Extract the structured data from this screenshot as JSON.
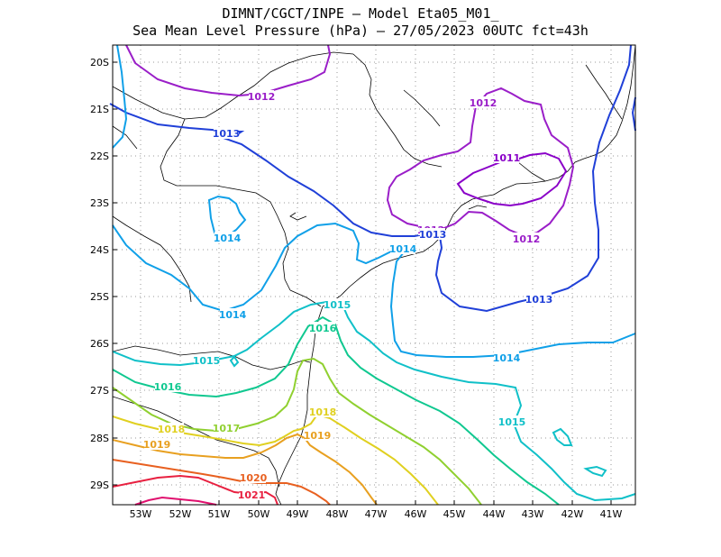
{
  "header": {
    "line1": "DIMNT/CGCT/INPE –  Model Eta05_M01_",
    "line2": "Sea Mean Level Pressure (hPa) – 27/05/2023 00UTC fct=43h"
  },
  "axes": {
    "lon_labels": [
      "53W",
      "52W",
      "51W",
      "50W",
      "49W",
      "48W",
      "47W",
      "46W",
      "45W",
      "44W",
      "43W",
      "42W",
      "41W"
    ],
    "lat_labels": [
      "20S",
      "21S",
      "22S",
      "23S",
      "24S",
      "25S",
      "26S",
      "27S",
      "28S",
      "29S"
    ]
  },
  "colors": {
    "c1011": "#8a00c8",
    "c1012": "#9a1ec8",
    "c1013": "#2040d8",
    "c1014": "#10a0e8",
    "c1015": "#10c0c8",
    "c1016": "#10c890",
    "c1017": "#90d030",
    "c1018": "#e0d020",
    "c1019": "#e8a020",
    "c1020": "#e86020",
    "c1021": "#e82040",
    "c1022": "#e0106e"
  },
  "contour_labels": [
    {
      "text": "1012",
      "color": "c1012"
    },
    {
      "text": "1012",
      "color": "c1012"
    },
    {
      "text": "1011",
      "color": "c1011"
    },
    {
      "text": "1012",
      "color": "c1012"
    },
    {
      "text": "1012",
      "color": "c1012"
    },
    {
      "text": "1013",
      "color": "c1013"
    },
    {
      "text": "1013",
      "color": "c1013"
    },
    {
      "text": "1013",
      "color": "c1013"
    },
    {
      "text": "1014",
      "color": "c1014"
    },
    {
      "text": "1014",
      "color": "c1014"
    },
    {
      "text": "1014",
      "color": "c1014"
    },
    {
      "text": "1014",
      "color": "c1014"
    },
    {
      "text": "1015",
      "color": "c1015"
    },
    {
      "text": "1015",
      "color": "c1015"
    },
    {
      "text": "1015",
      "color": "c1015"
    },
    {
      "text": "1016",
      "color": "c1016"
    },
    {
      "text": "1016",
      "color": "c1016"
    },
    {
      "text": "1017",
      "color": "c1017"
    },
    {
      "text": "1018",
      "color": "c1018"
    },
    {
      "text": "1018",
      "color": "c1018"
    },
    {
      "text": "1019",
      "color": "c1019"
    },
    {
      "text": "1019",
      "color": "c1019"
    },
    {
      "text": "1020",
      "color": "c1020"
    },
    {
      "text": "1021",
      "color": "c1021"
    }
  ]
}
